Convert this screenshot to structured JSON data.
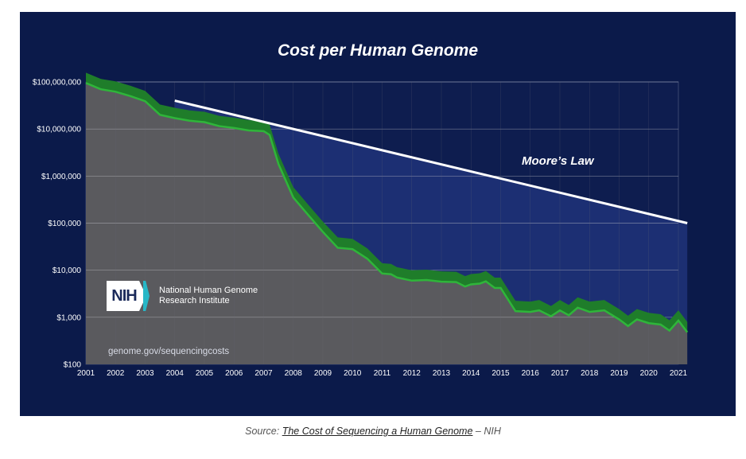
{
  "chart_data": {
    "type": "area",
    "title": "Cost per Human Genome",
    "y_scale": "log",
    "ylim": [
      100,
      100000000
    ],
    "xlim": [
      2001,
      2021
    ],
    "y_ticks": [
      {
        "value": 100000000,
        "label": "$100,000,000"
      },
      {
        "value": 10000000,
        "label": "$10,000,000"
      },
      {
        "value": 1000000,
        "label": "$1,000,000"
      },
      {
        "value": 100000,
        "label": "$100,000"
      },
      {
        "value": 10000,
        "label": "$10,000"
      },
      {
        "value": 1000,
        "label": "$1,000"
      },
      {
        "value": 100,
        "label": "$100"
      }
    ],
    "x_ticks": [
      "2001",
      "2002",
      "2003",
      "2004",
      "2005",
      "2006",
      "2007",
      "2008",
      "2009",
      "2010",
      "2011",
      "2012",
      "2013",
      "2014",
      "2015",
      "2016",
      "2017",
      "2018",
      "2019",
      "2020",
      "2021"
    ],
    "series": [
      {
        "type": "area",
        "color": "#2fb53a",
        "x": [
          2001.0,
          2001.5,
          2002.0,
          2002.5,
          2003.0,
          2003.5,
          2004.0,
          2004.5,
          2005.0,
          2005.5,
          2006.0,
          2006.5,
          2007.0,
          2007.2,
          2007.5,
          2008.0,
          2008.5,
          2009.0,
          2009.5,
          2010.0,
          2010.5,
          2011.0,
          2011.3,
          2011.5,
          2012.0,
          2012.5,
          2013.0,
          2013.5,
          2013.8,
          2014.0,
          2014.3,
          2014.5,
          2014.8,
          2015.0,
          2015.5,
          2016.0,
          2016.3,
          2016.7,
          2017.0,
          2017.3,
          2017.6,
          2018.0,
          2018.5,
          2019.0,
          2019.3,
          2019.6,
          2020.0,
          2020.4,
          2020.7,
          2021.0,
          2021.3
        ],
        "y": [
          95000000,
          70000000,
          62000000,
          50000000,
          39000000,
          20000000,
          17000000,
          15000000,
          14000000,
          11500000,
          10500000,
          9300000,
          9000000,
          7500000,
          1800000,
          350000,
          150000,
          65000,
          30000,
          28000,
          17500,
          8500,
          8200,
          7000,
          6000,
          6200,
          5700,
          5600,
          4500,
          5000,
          5200,
          5800,
          4200,
          4200,
          1350,
          1300,
          1400,
          1050,
          1400,
          1100,
          1600,
          1300,
          1400,
          900,
          650,
          900,
          750,
          700,
          520,
          850,
          480
        ]
      },
      {
        "type": "line",
        "color": "#ffffff",
        "label": "Moore’s Law",
        "x": [
          2004.0,
          2021.3
        ],
        "y": [
          40000000,
          100000
        ]
      }
    ]
  },
  "logo": {
    "mark": "NIH",
    "line1": "National Human Genome",
    "line2": "Research Institute"
  },
  "url": "genome.gov/sequencingcosts",
  "source": {
    "prefix": "Source:",
    "link": "The Cost of Sequencing a Human Genome",
    "suffix": "– NIH"
  }
}
